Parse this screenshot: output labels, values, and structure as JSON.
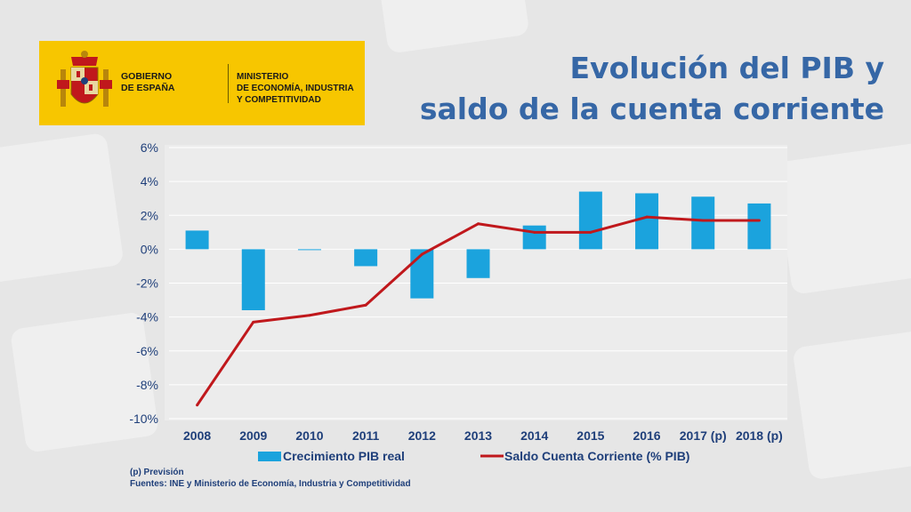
{
  "logo": {
    "gobierno_line1": "GOBIERNO",
    "gobierno_line2": "DE ESPAÑA",
    "ministerio_line1": "MINISTERIO",
    "ministerio_line2": "DE ECONOMÍA, INDUSTRIA",
    "ministerio_line3": "Y COMPETITIVIDAD",
    "bg_color": "#f7c600"
  },
  "title_line1": "Evolución del PIB y",
  "title_line2": "saldo de la cuenta corriente",
  "notes": {
    "line1": "(p) Previsión",
    "line2": "Fuentes: INE y Ministerio de Economía, Industria y Competitividad"
  },
  "chart_data": {
    "type": "bar",
    "categories": [
      "2008",
      "2009",
      "2010",
      "2011",
      "2012",
      "2013",
      "2014",
      "2015",
      "2016",
      "2017 (p)",
      "2018 (p)"
    ],
    "series": [
      {
        "name": "Crecimiento PIB real",
        "kind": "bar",
        "color": "#1ba3dd",
        "values": [
          1.1,
          -3.6,
          0.0,
          -1.0,
          -2.9,
          -1.7,
          1.4,
          3.4,
          3.3,
          3.1,
          2.7
        ]
      },
      {
        "name": "Saldo Cuenta Corriente (% PIB)",
        "kind": "line",
        "color": "#c0181c",
        "values": [
          -9.2,
          -4.3,
          -3.9,
          -3.3,
          -0.3,
          1.5,
          1.0,
          1.0,
          1.9,
          1.7,
          1.7
        ]
      }
    ],
    "ylim": [
      -10,
      6
    ],
    "yticks": [
      6,
      4,
      2,
      0,
      -2,
      -4,
      -6,
      -8,
      -10
    ],
    "ytick_labels": [
      "6%",
      "4%",
      "2%",
      "0%",
      "-2%",
      "-4%",
      "-6%",
      "-8%",
      "-10%"
    ],
    "grid": true,
    "legend": "bottom"
  }
}
